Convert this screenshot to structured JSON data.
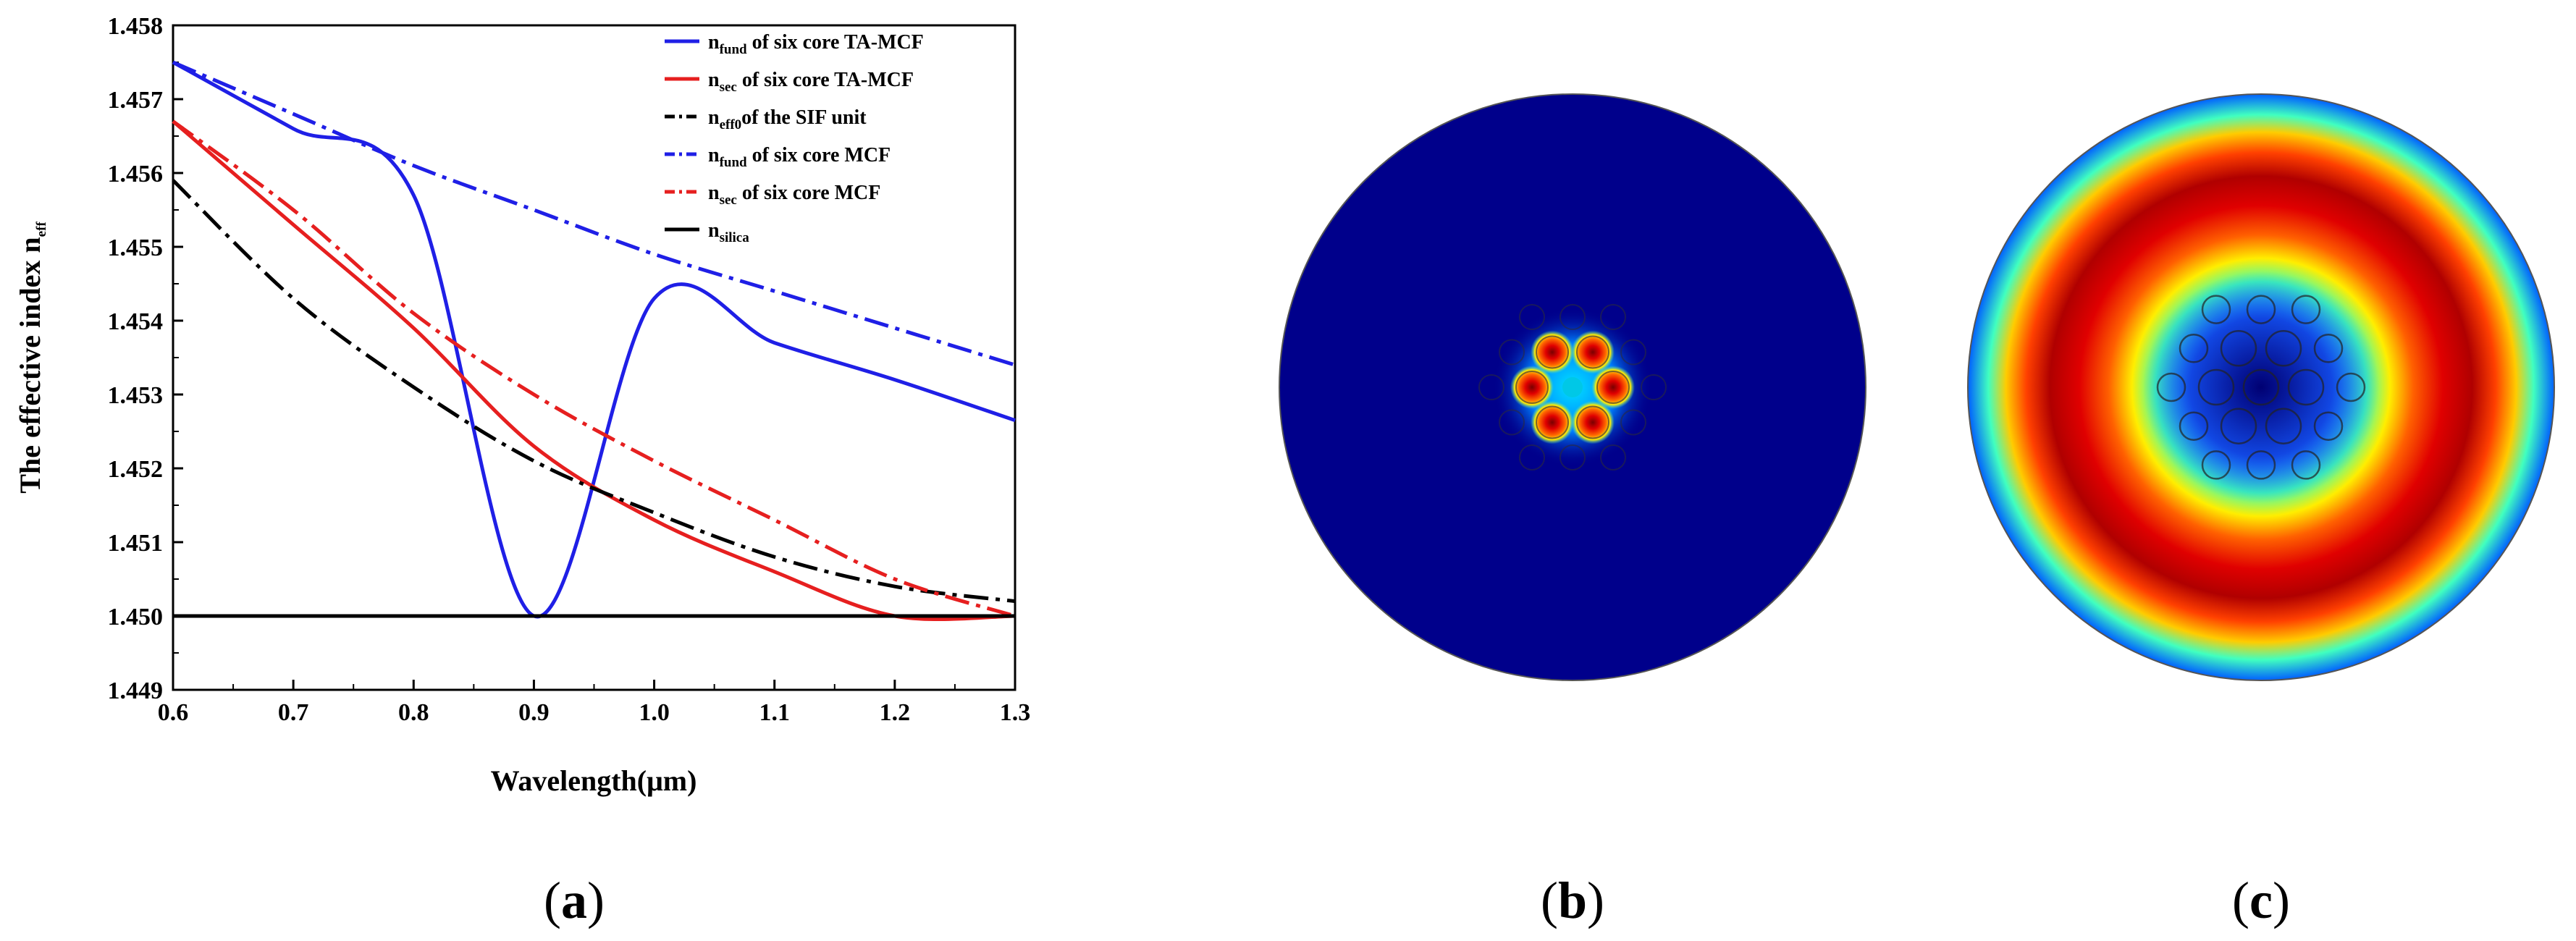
{
  "chart_data": {
    "type": "line",
    "xlabel": "Wavelength(μm)",
    "ylabel": {
      "main": "The effective index n",
      "sub": "eff"
    },
    "xlim": [
      0.6,
      1.3
    ],
    "ylim": [
      1.449,
      1.458
    ],
    "x_ticks": [
      "0.6",
      "0.7",
      "0.8",
      "0.9",
      "1.0",
      "1.1",
      "1.2",
      "1.3"
    ],
    "y_ticks": [
      "1.449",
      "1.450",
      "1.451",
      "1.452",
      "1.453",
      "1.454",
      "1.455",
      "1.456",
      "1.457",
      "1.458"
    ],
    "series": [
      {
        "name": "n_fund of six core TA-MCF",
        "legend": {
          "n": "n",
          "sub": "fund",
          "rest": " of six core TA-MCF"
        },
        "color": "#1f1fe6",
        "style": "solid",
        "x": [
          0.6,
          0.7,
          0.8,
          0.9,
          1.0,
          1.1,
          1.2,
          1.3
        ],
        "y": [
          1.4575,
          1.4566,
          1.4557,
          1.45,
          1.4543,
          1.4537,
          1.4532,
          1.45265
        ]
      },
      {
        "name": "n_sec of six core TA-MCF",
        "legend": {
          "n": "n",
          "sub": "sec",
          "rest": " of six core TA-MCF"
        },
        "color": "#e61f1f",
        "style": "solid",
        "x": [
          0.6,
          0.7,
          0.8,
          0.9,
          1.0,
          1.1,
          1.2,
          1.3
        ],
        "y": [
          1.4567,
          1.4553,
          1.4539,
          1.4523,
          1.4513,
          1.4506,
          1.45,
          1.45
        ]
      },
      {
        "name": "n_eff0 of the SIF unit",
        "legend": {
          "n": "n",
          "sub": "eff0",
          "rest": "of the SIF unit"
        },
        "color": "#000000",
        "style": "dashdot",
        "x": [
          0.6,
          0.7,
          0.8,
          0.9,
          1.0,
          1.1,
          1.2,
          1.3
        ],
        "y": [
          1.4559,
          1.4543,
          1.4531,
          1.4521,
          1.4514,
          1.4508,
          1.4504,
          1.4502
        ]
      },
      {
        "name": "n_fund of six core MCF",
        "legend": {
          "n": "n",
          "sub": "fund",
          "rest": " of six core MCF"
        },
        "color": "#1f1fe6",
        "style": "dashdot",
        "x": [
          0.6,
          0.7,
          0.8,
          0.9,
          1.0,
          1.1,
          1.2,
          1.3
        ],
        "y": [
          1.4575,
          1.4568,
          1.4561,
          1.4555,
          1.4549,
          1.4544,
          1.4539,
          1.4534
        ]
      },
      {
        "name": "n_sec of six core MCF",
        "legend": {
          "n": "n",
          "sub": "sec",
          "rest": " of six core MCF"
        },
        "color": "#e61f1f",
        "style": "dashdot",
        "x": [
          0.6,
          0.7,
          0.8,
          0.9,
          1.0,
          1.1,
          1.2,
          1.3
        ],
        "y": [
          1.4567,
          1.4555,
          1.4541,
          1.453,
          1.4521,
          1.4513,
          1.4505,
          1.45
        ]
      },
      {
        "name": "n_silica",
        "legend": {
          "n": "n",
          "sub": "silica",
          "rest": ""
        },
        "color": "#000000",
        "style": "solid",
        "x": [
          0.6,
          1.3
        ],
        "y": [
          1.45,
          1.45
        ]
      }
    ],
    "legend_position": "top-right"
  },
  "panels": {
    "a": {
      "open": "(",
      "letter": "a",
      "close": ")"
    },
    "b": {
      "open": "(",
      "letter": "b",
      "close": ")"
    },
    "c": {
      "open": "(",
      "letter": "c",
      "close": ")"
    }
  },
  "colors": {
    "field_blue": "#00008b",
    "field_red": "#d00000",
    "mode_cyan": "#00c8e6"
  }
}
